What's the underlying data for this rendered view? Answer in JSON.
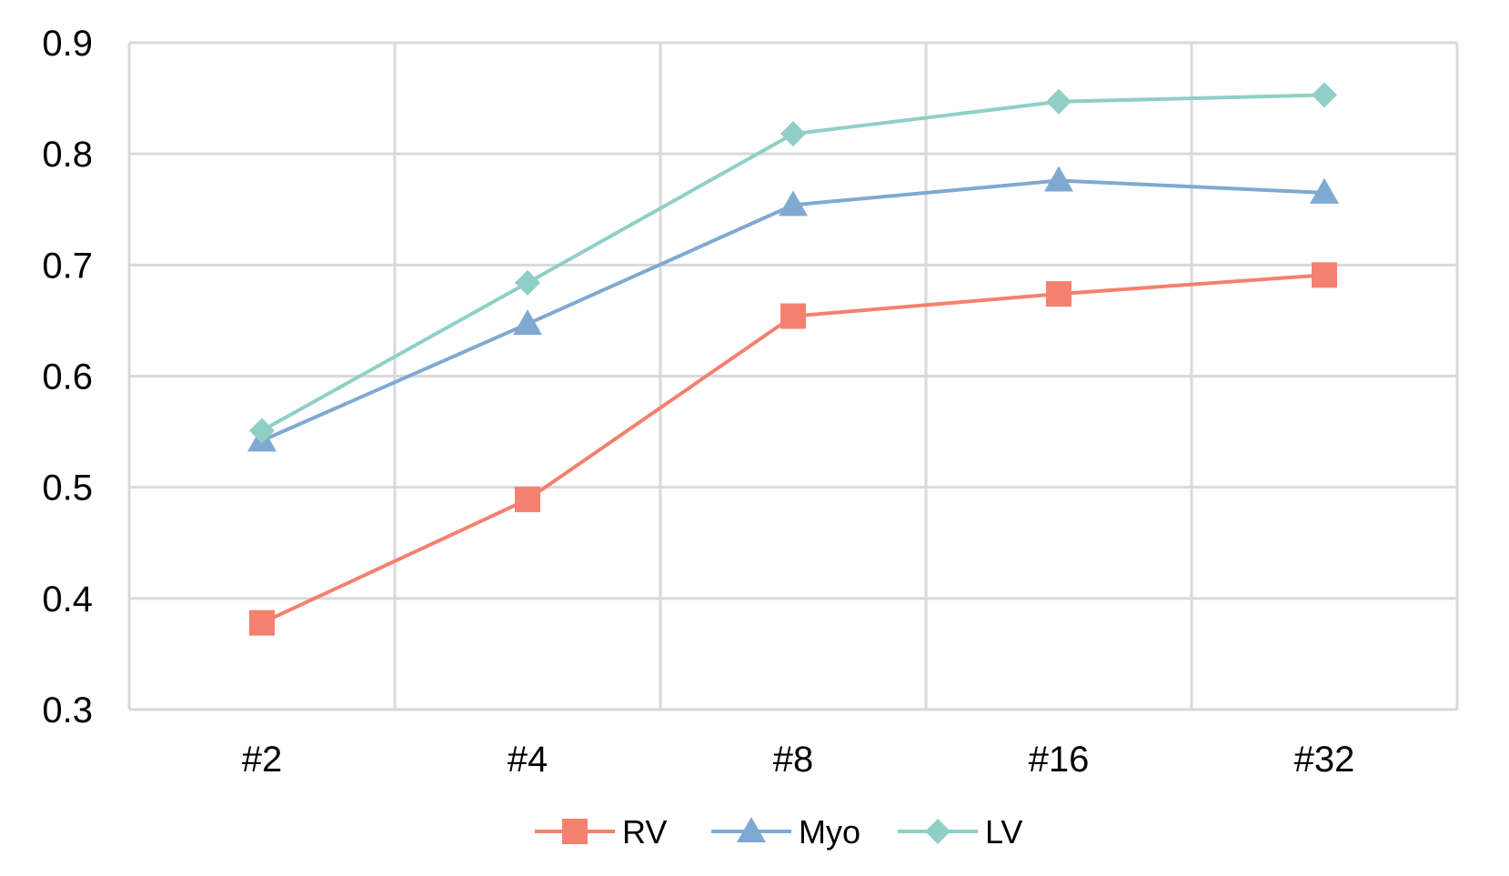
{
  "chart_data": {
    "type": "line",
    "title": "",
    "xlabel": "",
    "ylabel": "",
    "categories": [
      "#2",
      "#4",
      "#8",
      "#16",
      "#32"
    ],
    "ylim": [
      0.3,
      0.9
    ],
    "y_ticks": [
      "0.3",
      "0.4",
      "0.5",
      "0.6",
      "0.7",
      "0.8",
      "0.9"
    ],
    "grid": true,
    "legend_position": "bottom",
    "series": [
      {
        "name": "RV",
        "marker": "square",
        "color": "#f4806f",
        "values": [
          0.378,
          0.489,
          0.654,
          0.674,
          0.691
        ]
      },
      {
        "name": "Myo",
        "marker": "triangle",
        "color": "#7fa9d1",
        "values": [
          0.542,
          0.647,
          0.754,
          0.776,
          0.765
        ]
      },
      {
        "name": "LV",
        "marker": "diamond",
        "color": "#8fcfc6",
        "values": [
          0.551,
          0.684,
          0.818,
          0.847,
          0.853
        ]
      }
    ]
  }
}
